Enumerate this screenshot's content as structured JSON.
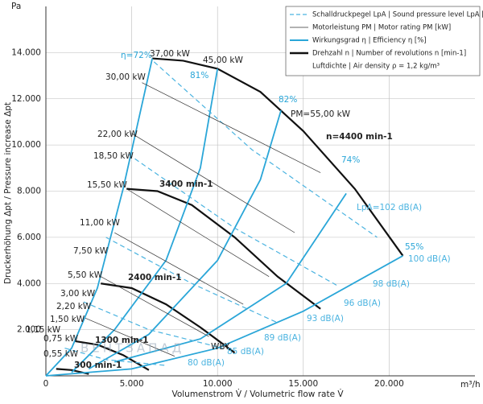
{
  "chart_data": {
    "type": "fan-map",
    "y_unit": "Pa",
    "x_unit": "m³/h",
    "xlabel": "Volumenstrom V̇ / Volumetric flow rate V̇",
    "ylabel": "Druckerhöhung Δpt / Pressure increase Δpt",
    "xlim": [
      0,
      25000
    ],
    "ylim": [
      0,
      16000
    ],
    "xticks": [
      0,
      {
        "value": 5000,
        "label": "5.000"
      },
      {
        "value": 10000,
        "label": "10.000"
      },
      {
        "value": 15000,
        "label": "15.000"
      },
      {
        "value": 20000,
        "label": "20.000"
      }
    ],
    "yticks": [
      {
        "value": 2000,
        "label": "2.000"
      },
      {
        "value": 4000,
        "label": "4.000"
      },
      {
        "value": 6000,
        "label": "6.000"
      },
      {
        "value": 8000,
        "label": "8.000"
      },
      {
        "value": 10000,
        "label": "10.000"
      },
      {
        "value": 12000,
        "label": "12.000"
      },
      {
        "value": 14000,
        "label": "14.000"
      }
    ],
    "grid": true,
    "legend": [
      {
        "label": "Schalldruckpegel LpA | Sound pressure level LpA [dB(A)]",
        "color": "#4ab3e0",
        "dashed": true,
        "width": 1.2
      },
      {
        "label": "Motorleistung PM | Motor rating PM [kW]",
        "color": "#333333",
        "dashed": false,
        "width": 0.8
      },
      {
        "label": "Wirkungsgrad η | Efficiency η [%]",
        "color": "#2aa6d8",
        "dashed": false,
        "width": 2
      },
      {
        "label": "Drehzahl n | Number of revolutions n [min-1]",
        "color": "#111111",
        "dashed": false,
        "width": 2.4
      },
      {
        "label": "Luftdichte | Air density ρ = 1,2 kg/m³"
      }
    ],
    "curves": [
      {
        "color": "#111111",
        "width": 2.2,
        "dashed": false,
        "x": [
          6200,
          8000,
          10000,
          12500,
          15000,
          18000,
          20800
        ],
        "y": [
          13750,
          13650,
          13300,
          12300,
          10600,
          8100,
          5200
        ]
      },
      {
        "color": "#111111",
        "width": 2.2,
        "dashed": false,
        "x": [
          4700,
          6500,
          8500,
          11000,
          13500,
          16000
        ],
        "y": [
          8100,
          8000,
          7400,
          6000,
          4300,
          2900
        ]
      },
      {
        "color": "#111111",
        "width": 2.2,
        "dashed": false,
        "x": [
          3200,
          5000,
          7000,
          9000,
          11000
        ],
        "y": [
          4000,
          3800,
          3100,
          2100,
          1000
        ]
      },
      {
        "color": "#111111",
        "width": 2.2,
        "dashed": false,
        "x": [
          1700,
          3000,
          4500,
          6000
        ],
        "y": [
          1500,
          1350,
          900,
          250
        ]
      },
      {
        "color": "#111111",
        "width": 2.2,
        "dashed": false,
        "x": [
          600,
          1500,
          2500
        ],
        "y": [
          300,
          250,
          80
        ]
      },
      {
        "color": "#2aa6d8",
        "width": 1.8,
        "dashed": false,
        "x": [
          0,
          1500,
          3000,
          4500,
          6200
        ],
        "y": [
          0,
          1200,
          3800,
          8100,
          13750
        ]
      },
      {
        "color": "#2aa6d8",
        "width": 1.8,
        "dashed": false,
        "x": [
          1500,
          4000,
          7000,
          9000,
          10000
        ],
        "y": [
          150,
          2000,
          5000,
          9000,
          13300
        ]
      },
      {
        "color": "#2aa6d8",
        "width": 1.8,
        "dashed": false,
        "x": [
          2500,
          6000,
          10000,
          12500,
          13700
        ],
        "y": [
          300,
          1800,
          5000,
          8500,
          11500
        ]
      },
      {
        "color": "#2aa6d8",
        "width": 1.8,
        "dashed": false,
        "x": [
          4000,
          9000,
          14000,
          17500
        ],
        "y": [
          600,
          1600,
          4000,
          7900
        ]
      },
      {
        "color": "#2aa6d8",
        "width": 1.8,
        "dashed": false,
        "x": [
          0,
          5000,
          10000,
          15000,
          20800
        ],
        "y": [
          0,
          300,
          1200,
          2800,
          5200
        ]
      },
      {
        "color": "#4ab3e0",
        "width": 1.2,
        "dashed": true,
        "x": [
          6300,
          12000,
          19300
        ],
        "y": [
          13600,
          9800,
          6000
        ]
      },
      {
        "color": "#4ab3e0",
        "width": 1.2,
        "dashed": true,
        "x": [
          4800,
          11000,
          17000
        ],
        "y": [
          9600,
          6400,
          3900
        ]
      },
      {
        "color": "#4ab3e0",
        "width": 1.2,
        "dashed": true,
        "x": [
          3500,
          8500,
          13500
        ],
        "y": [
          6000,
          4000,
          2300
        ]
      },
      {
        "color": "#4ab3e0",
        "width": 1.2,
        "dashed": true,
        "x": [
          2200,
          6000,
          10300
        ],
        "y": [
          3200,
          2000,
          1200
        ]
      },
      {
        "color": "#4ab3e0",
        "width": 1.2,
        "dashed": true,
        "x": [
          1100,
          3500,
          7000
        ],
        "y": [
          1200,
          700,
          450
        ]
      },
      {
        "color": "#333333",
        "width": 0.7,
        "dashed": false,
        "x": [
          5600,
          16000
        ],
        "y": [
          12700,
          8800
        ]
      },
      {
        "color": "#333333",
        "width": 0.7,
        "dashed": false,
        "x": [
          5000,
          14500
        ],
        "y": [
          10500,
          6200
        ]
      },
      {
        "color": "#333333",
        "width": 0.7,
        "dashed": false,
        "x": [
          4700,
          13000
        ],
        "y": [
          8100,
          4300
        ]
      },
      {
        "color": "#333333",
        "width": 0.7,
        "dashed": false,
        "x": [
          4000,
          11500
        ],
        "y": [
          6200,
          3100
        ]
      },
      {
        "color": "#333333",
        "width": 0.7,
        "dashed": false,
        "x": [
          3200,
          9500
        ],
        "y": [
          4300,
          1700
        ]
      },
      {
        "color": "#333333",
        "width": 0.7,
        "dashed": false,
        "x": [
          2300,
          7500
        ],
        "y": [
          2500,
          850
        ]
      }
    ],
    "annotations": [
      "η=72%",
      "37,00 kW",
      "45,00 kW",
      "81%",
      "30,00 kW",
      "82%",
      "PM=55,00 kW",
      "22,00 kW",
      "n=4400 min-1",
      "18,50 kW",
      "74%",
      "15,50 kW",
      "3400 min-1",
      "LpA=102 dB(A)",
      "11,00 kW",
      "7,50 kW",
      "55%",
      "100 dB(A)",
      "5,50 kW",
      "2400 min-1",
      "98 dB(A)",
      "3,00 kW",
      "96 dB(A)",
      "2,20 kW",
      "93 dB(A)",
      "1,50 kW",
      "1,15 kW",
      "89 dB(A)",
      "0,75 kW",
      "1300 min-1",
      "ВЕНТЗАПАД",
      "WBY",
      "85 dB(A)",
      "0,55 kW",
      "80 dB(A)",
      "300 min-1"
    ]
  }
}
